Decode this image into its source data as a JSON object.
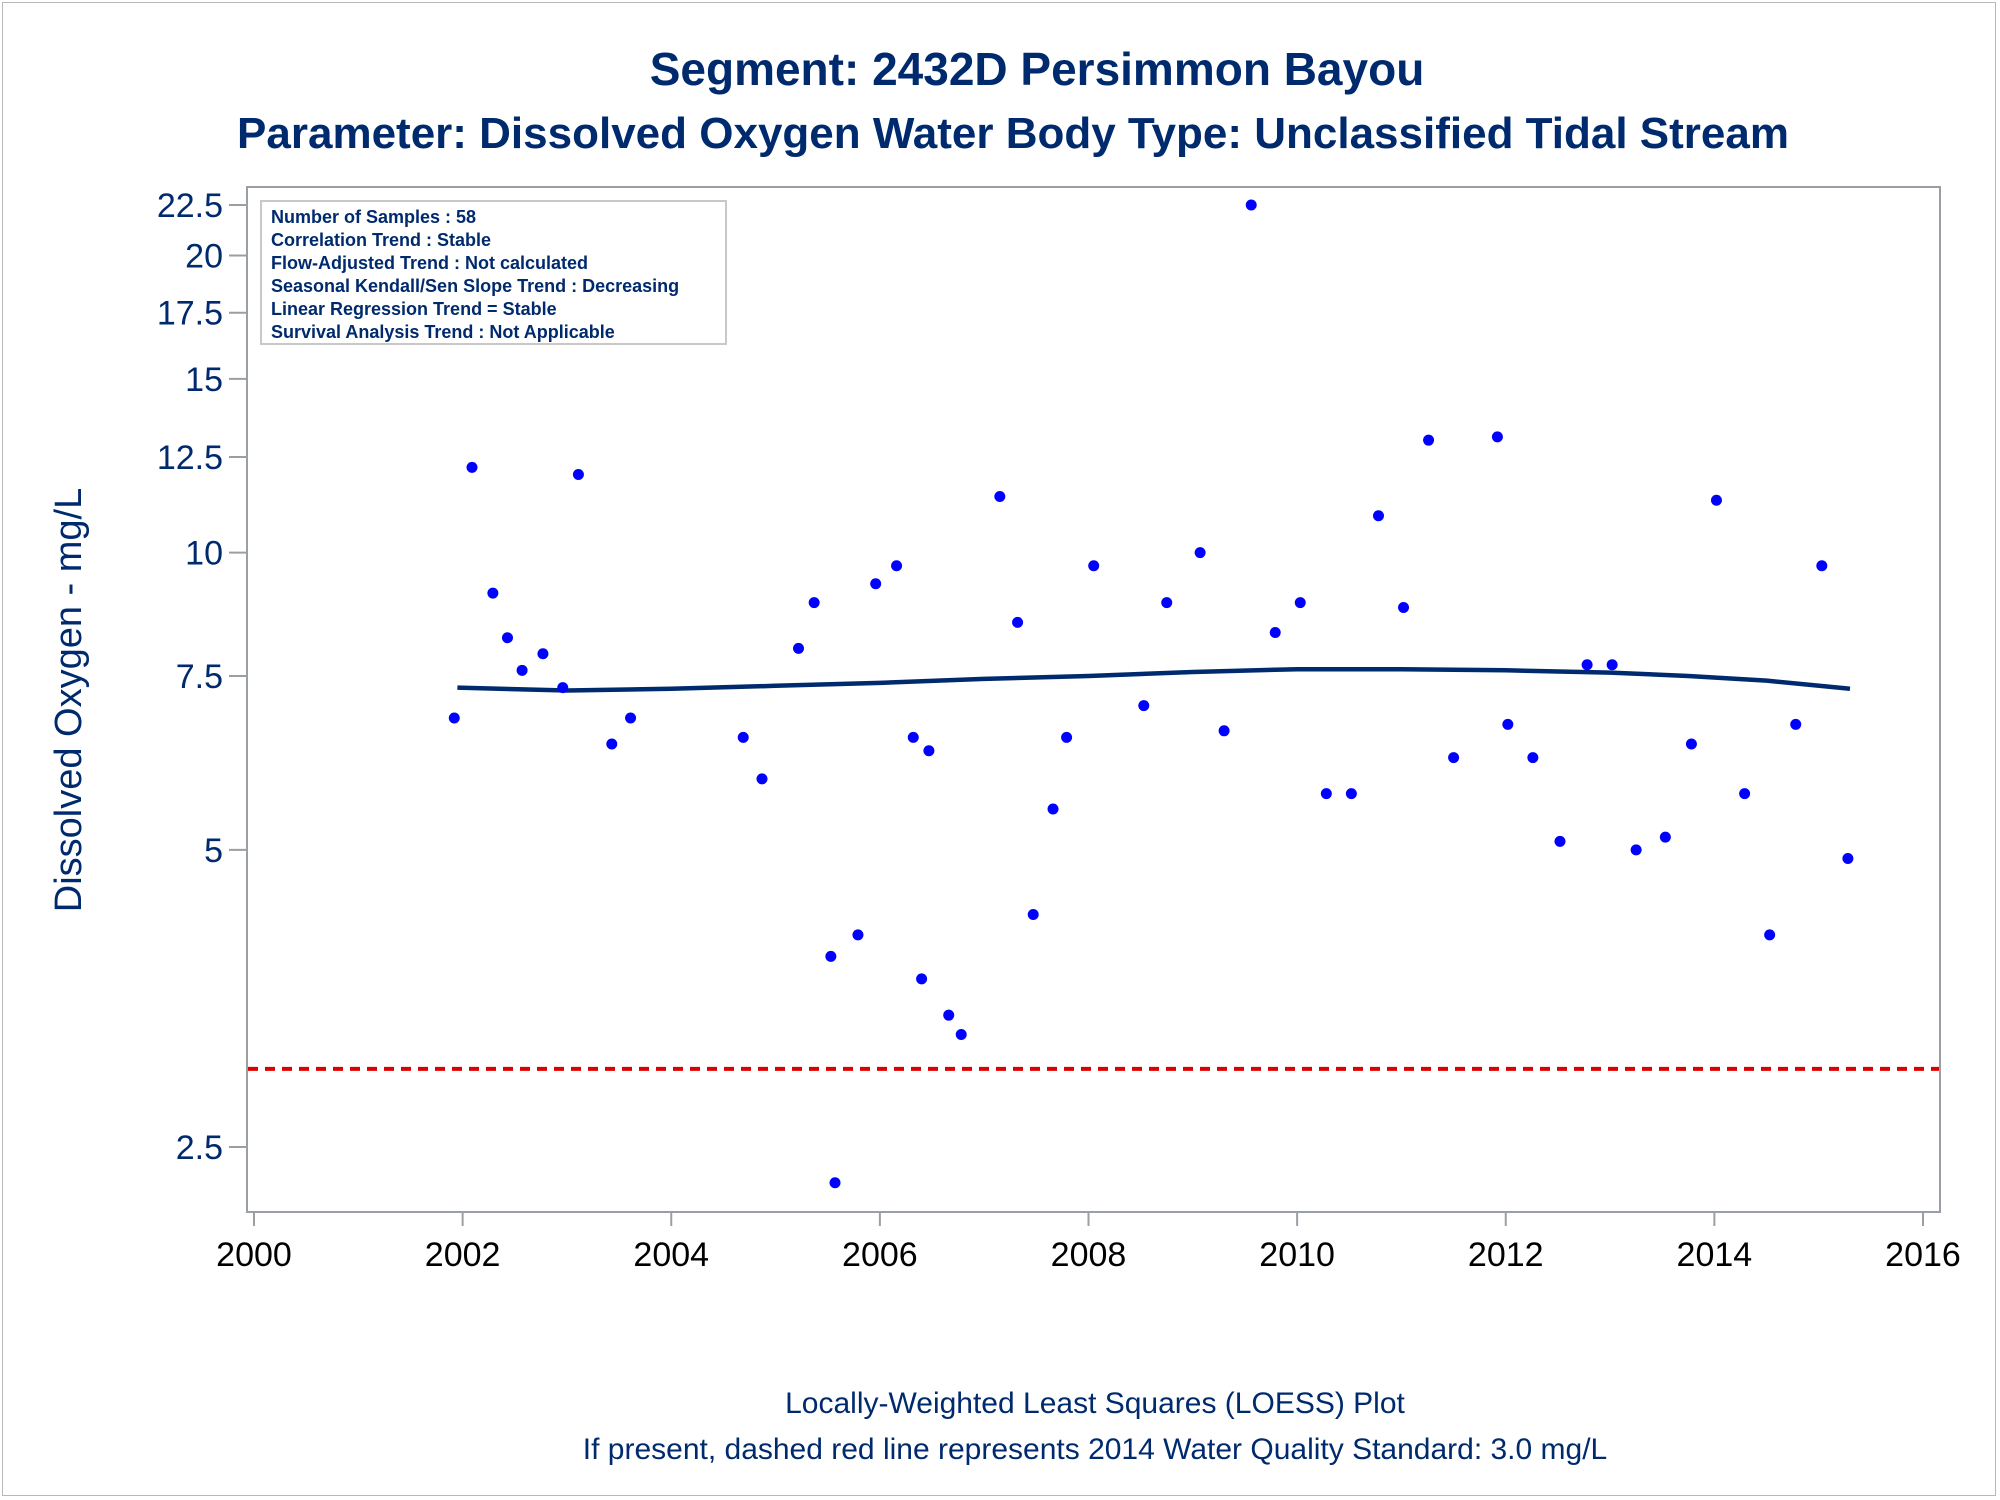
{
  "titles": {
    "line1": "Segment: 2432D  Persimmon Bayou",
    "line2": "Parameter: Dissolved Oxygen   Water Body Type: Unclassified Tidal Stream"
  },
  "stats_box": [
    "Number of Samples : 58",
    "Correlation Trend : Stable",
    "Flow-Adjusted Trend : Not calculated",
    "Seasonal Kendall/Sen Slope Trend : Decreasing",
    "Linear Regression Trend = Stable",
    "Survival Analysis Trend : Not Applicable"
  ],
  "footnotes": {
    "line1": "Locally-Weighted Least Squares (LOESS) Plot",
    "line2": "If present, dashed red line represents 2014 Water Quality Standard: 3.0 mg/L"
  },
  "colors": {
    "text": "#002a6e",
    "points": "#0000ff",
    "loess": "#002a6e",
    "standard_line": "#dd0000",
    "axis": "#9a9fa6"
  },
  "chart_data": {
    "type": "scatter",
    "ylabel": "Dissolved Oxygen - mg/L",
    "xlabel": "",
    "x_ticks": [
      2000,
      2002,
      2004,
      2006,
      2008,
      2010,
      2012,
      2014,
      2016
    ],
    "y_ticks": [
      2.5,
      5,
      7.5,
      10,
      12.5,
      15,
      17.5,
      20,
      22.5
    ],
    "y_tick_labels": [
      "2.5",
      "5",
      "7.5",
      "10",
      "12.5",
      "15",
      "17.5",
      "20",
      "22.5"
    ],
    "xlim": [
      2000,
      2016
    ],
    "ylim": [
      2.0,
      22.5
    ],
    "y_scale": "log",
    "grid": false,
    "points": [
      {
        "x": 2001.92,
        "y": 6.8
      },
      {
        "x": 2002.09,
        "y": 12.2
      },
      {
        "x": 2002.29,
        "y": 9.1
      },
      {
        "x": 2002.43,
        "y": 8.2
      },
      {
        "x": 2002.57,
        "y": 7.6
      },
      {
        "x": 2002.77,
        "y": 7.9
      },
      {
        "x": 2002.96,
        "y": 7.3
      },
      {
        "x": 2003.11,
        "y": 12.0
      },
      {
        "x": 2003.43,
        "y": 6.4
      },
      {
        "x": 2003.61,
        "y": 6.8
      },
      {
        "x": 2004.69,
        "y": 6.5
      },
      {
        "x": 2004.87,
        "y": 5.9
      },
      {
        "x": 2005.22,
        "y": 8.0
      },
      {
        "x": 2005.37,
        "y": 8.9
      },
      {
        "x": 2005.53,
        "y": 3.9
      },
      {
        "x": 2005.57,
        "y": 2.3
      },
      {
        "x": 2005.79,
        "y": 4.1
      },
      {
        "x": 2005.96,
        "y": 9.3
      },
      {
        "x": 2006.16,
        "y": 9.7
      },
      {
        "x": 2006.32,
        "y": 6.5
      },
      {
        "x": 2006.4,
        "y": 3.7
      },
      {
        "x": 2006.47,
        "y": 6.3
      },
      {
        "x": 2006.66,
        "y": 3.4
      },
      {
        "x": 2006.78,
        "y": 3.25
      },
      {
        "x": 2007.15,
        "y": 11.4
      },
      {
        "x": 2007.32,
        "y": 8.5
      },
      {
        "x": 2007.47,
        "y": 4.3
      },
      {
        "x": 2007.66,
        "y": 5.5
      },
      {
        "x": 2007.79,
        "y": 6.5
      },
      {
        "x": 2008.05,
        "y": 9.7
      },
      {
        "x": 2008.53,
        "y": 7.0
      },
      {
        "x": 2008.75,
        "y": 8.9
      },
      {
        "x": 2009.07,
        "y": 10.0
      },
      {
        "x": 2009.3,
        "y": 6.6
      },
      {
        "x": 2009.56,
        "y": 22.5
      },
      {
        "x": 2009.79,
        "y": 8.3
      },
      {
        "x": 2010.03,
        "y": 8.9
      },
      {
        "x": 2010.28,
        "y": 5.7
      },
      {
        "x": 2010.52,
        "y": 5.7
      },
      {
        "x": 2010.78,
        "y": 10.9
      },
      {
        "x": 2011.02,
        "y": 8.8
      },
      {
        "x": 2011.26,
        "y": 13.0
      },
      {
        "x": 2011.5,
        "y": 6.2
      },
      {
        "x": 2011.92,
        "y": 13.1
      },
      {
        "x": 2012.02,
        "y": 6.7
      },
      {
        "x": 2012.26,
        "y": 6.2
      },
      {
        "x": 2012.52,
        "y": 5.1
      },
      {
        "x": 2012.78,
        "y": 7.7
      },
      {
        "x": 2013.02,
        "y": 7.7
      },
      {
        "x": 2013.25,
        "y": 5.0
      },
      {
        "x": 2013.53,
        "y": 5.15
      },
      {
        "x": 2013.78,
        "y": 6.4
      },
      {
        "x": 2014.02,
        "y": 11.3
      },
      {
        "x": 2014.29,
        "y": 5.7
      },
      {
        "x": 2014.53,
        "y": 4.1
      },
      {
        "x": 2014.78,
        "y": 6.7
      },
      {
        "x": 2015.03,
        "y": 9.7
      },
      {
        "x": 2015.28,
        "y": 4.9
      }
    ],
    "loess": [
      {
        "x": 2001.95,
        "y": 7.3
      },
      {
        "x": 2003.0,
        "y": 7.25
      },
      {
        "x": 2004.0,
        "y": 7.28
      },
      {
        "x": 2005.0,
        "y": 7.33
      },
      {
        "x": 2006.0,
        "y": 7.38
      },
      {
        "x": 2007.0,
        "y": 7.45
      },
      {
        "x": 2008.0,
        "y": 7.5
      },
      {
        "x": 2009.0,
        "y": 7.57
      },
      {
        "x": 2010.0,
        "y": 7.62
      },
      {
        "x": 2011.0,
        "y": 7.62
      },
      {
        "x": 2012.0,
        "y": 7.6
      },
      {
        "x": 2013.0,
        "y": 7.56
      },
      {
        "x": 2013.75,
        "y": 7.5
      },
      {
        "x": 2014.5,
        "y": 7.42
      },
      {
        "x": 2015.3,
        "y": 7.28
      }
    ],
    "standard_line_value": 3.0
  }
}
